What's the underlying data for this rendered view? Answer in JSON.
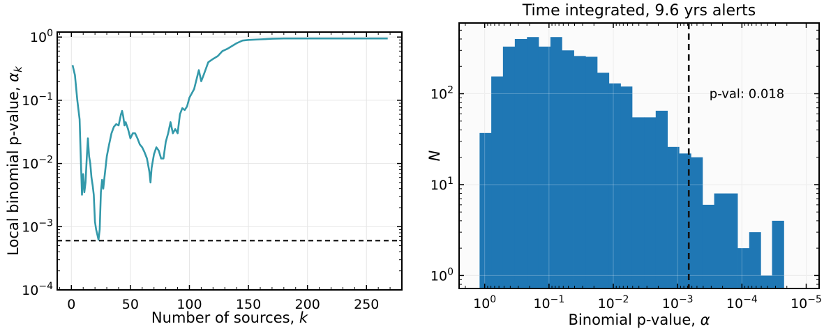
{
  "chart_data": [
    {
      "type": "line",
      "title": "",
      "xlabel": "Number of sources, k",
      "ylabel": "Local binomial p-value, α_k",
      "xlabel_parts": {
        "text": "Number of sources, ",
        "var": "k"
      },
      "ylabel_parts": {
        "text": "Local binomial p-value, ",
        "var": "α",
        "sub": "k"
      },
      "xlim": [
        -12,
        280
      ],
      "ylim": [
        0.0001,
        1.2
      ],
      "yscale": "log",
      "grid": true,
      "xticks": [
        0,
        50,
        100,
        150,
        200,
        250
      ],
      "xtick_labels": [
        "0",
        "50",
        "100",
        "150",
        "200",
        "250"
      ],
      "yticks": [
        0.0001,
        0.001,
        0.01,
        0.1,
        1
      ],
      "ytick_labels": [
        {
          "base": "10",
          "exp": "−4"
        },
        {
          "base": "10",
          "exp": "−3"
        },
        {
          "base": "10",
          "exp": "−2"
        },
        {
          "base": "10",
          "exp": "−1"
        },
        {
          "base": "10",
          "exp": "0"
        }
      ],
      "line_color": "#3399aa",
      "threshold": 0.0006,
      "series": [
        {
          "x": [
            1,
            3,
            5,
            7,
            8,
            9,
            10,
            11,
            12,
            13,
            14,
            15,
            16,
            17,
            18,
            19,
            20,
            21,
            22,
            23,
            24,
            25,
            26,
            27,
            28,
            30,
            32,
            34,
            36,
            38,
            40,
            42,
            43,
            44,
            45,
            46,
            48,
            50,
            52,
            54,
            56,
            58,
            60,
            62,
            64,
            66,
            67,
            68,
            70,
            72,
            74,
            76,
            78,
            80,
            82,
            84,
            86,
            88,
            90,
            92,
            94,
            96,
            98,
            100,
            104,
            108,
            110,
            112,
            116,
            120,
            124,
            128,
            132,
            136,
            140,
            145,
            150,
            160,
            170,
            180,
            200,
            220,
            240,
            260,
            268
          ],
          "y": [
            0.36,
            0.25,
            0.1,
            0.05,
            0.012,
            0.0032,
            0.0068,
            0.0035,
            0.005,
            0.012,
            0.025,
            0.013,
            0.01,
            0.006,
            0.0045,
            0.0032,
            0.0012,
            0.0009,
            0.00075,
            0.00062,
            0.0009,
            0.0035,
            0.0055,
            0.004,
            0.006,
            0.013,
            0.02,
            0.03,
            0.038,
            0.042,
            0.04,
            0.06,
            0.068,
            0.055,
            0.04,
            0.045,
            0.035,
            0.025,
            0.03,
            0.03,
            0.025,
            0.02,
            0.018,
            0.015,
            0.012,
            0.0075,
            0.005,
            0.0085,
            0.014,
            0.018,
            0.016,
            0.012,
            0.012,
            0.022,
            0.03,
            0.045,
            0.03,
            0.035,
            0.03,
            0.06,
            0.075,
            0.07,
            0.08,
            0.11,
            0.15,
            0.3,
            0.2,
            0.25,
            0.4,
            0.45,
            0.5,
            0.6,
            0.65,
            0.72,
            0.8,
            0.88,
            0.9,
            0.92,
            0.94,
            0.95,
            0.95,
            0.95,
            0.95,
            0.95,
            0.95
          ]
        }
      ]
    },
    {
      "type": "bar",
      "title": "Time integrated, 9.6 yrs alerts",
      "xlabel": "Binomial p-value, α",
      "ylabel": "N",
      "xlabel_parts": {
        "text": "Binomial p-value, ",
        "var": "α"
      },
      "ylabel_parts": {
        "text": "",
        "var": "N"
      },
      "xscale": "log",
      "yscale": "log",
      "x_inverted": true,
      "xlim": [
        2.5,
        6.3e-06
      ],
      "ylim": [
        0.72,
        600
      ],
      "grid": true,
      "xticks": [
        1,
        0.1,
        0.01,
        0.001,
        0.0001,
        1e-05
      ],
      "xtick_labels": [
        {
          "base": "10",
          "exp": "0"
        },
        {
          "base": "10",
          "exp": "−1"
        },
        {
          "base": "10",
          "exp": "−2"
        },
        {
          "base": "10",
          "exp": "−3"
        },
        {
          "base": "10",
          "exp": "−4"
        },
        {
          "base": "10",
          "exp": "−5"
        }
      ],
      "yticks": [
        1,
        10,
        100
      ],
      "ytick_labels": [
        {
          "base": "10",
          "exp": "0"
        },
        {
          "base": "10",
          "exp": "1"
        },
        {
          "base": "10",
          "exp": "2"
        }
      ],
      "bar_color": "#1f77b4",
      "bin_edges": [
        1.2,
        0.79,
        0.52,
        0.34,
        0.22,
        0.145,
        0.095,
        0.063,
        0.041,
        0.027,
        0.0178,
        0.0117,
        0.0077,
        0.0051,
        0.0033,
        0.00219,
        0.00144,
        0.00095,
        0.00062,
        0.00041,
        0.00027,
        0.000178,
        0.000117,
        7.7e-05,
        5.1e-05,
        3.4e-05,
        2.23e-05
      ],
      "counts": [
        37,
        155,
        330,
        400,
        420,
        330,
        420,
        300,
        260,
        255,
        170,
        130,
        120,
        55,
        55,
        65,
        26,
        22,
        20,
        6,
        8,
        8,
        2,
        3,
        1,
        4
      ],
      "threshold_alpha": 0.00067,
      "annotation": "p-val: 0.018",
      "annotation_pos": {
        "alpha": 0.00032,
        "N": 100
      }
    }
  ]
}
